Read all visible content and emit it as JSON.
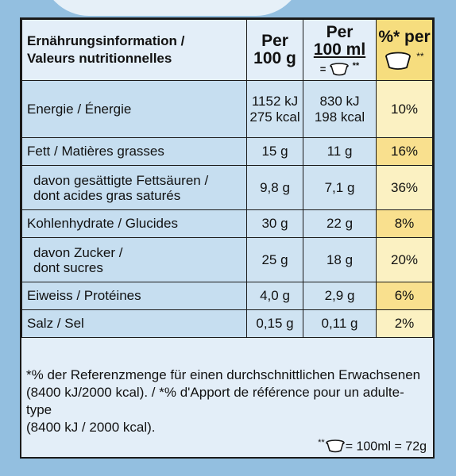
{
  "header": {
    "label_de": "Ernährungsinformation /",
    "label_fr": "Valeurs nutritionnelles",
    "per100g_a": "Per",
    "per100g_b": "100 g",
    "per100ml_a": "Per",
    "per100ml_b": "100 ml",
    "per100ml_eq": "=",
    "per100ml_mark": "**",
    "pct_a": "%* per",
    "pct_mark": "**"
  },
  "rows": [
    {
      "name1": "Energie / Énergie",
      "name2": "",
      "v100g_1": "1152 kJ",
      "v100g_2": "275 kcal",
      "v100ml_1": "830 kJ",
      "v100ml_2": "198 kcal",
      "pct": "10%"
    },
    {
      "name1": "Fett / Matières grasses",
      "name2": "",
      "v100g_1": "15 g",
      "v100g_2": "",
      "v100ml_1": "11 g",
      "v100ml_2": "",
      "pct": "16%"
    },
    {
      "name1": "davon gesättigte Fettsäuren /",
      "name2": "dont acides gras saturés",
      "v100g_1": "9,8 g",
      "v100g_2": "",
      "v100ml_1": "7,1 g",
      "v100ml_2": "",
      "pct": "36%"
    },
    {
      "name1": "Kohlenhydrate / Glucides",
      "name2": "",
      "v100g_1": "30 g",
      "v100g_2": "",
      "v100ml_1": "22 g",
      "v100ml_2": "",
      "pct": "8%"
    },
    {
      "name1": "davon Zucker /",
      "name2": "dont sucres",
      "v100g_1": "25 g",
      "v100g_2": "",
      "v100ml_1": "18 g",
      "v100ml_2": "",
      "pct": "20%"
    },
    {
      "name1": "Eiweiss / Protéines",
      "name2": "",
      "v100g_1": "4,0 g",
      "v100g_2": "",
      "v100ml_1": "2,9 g",
      "v100ml_2": "",
      "pct": "6%"
    },
    {
      "name1": "Salz / Sel",
      "name2": "",
      "v100g_1": "0,15 g",
      "v100g_2": "",
      "v100ml_1": "0,11 g",
      "v100ml_2": "",
      "pct": "2%"
    }
  ],
  "footnote": {
    "line1": "*% der Referenzmenge für einen durchschnittlichen Erwachsenen",
    "line2": "(8400 kJ/2000 kcal). / *% d'Apport de référence pour un adulte-type",
    "line3": "(8400 kJ / 2000 kcal).",
    "serving_mark": "**",
    "serving_text": "= 100ml = 72g"
  },
  "colors": {
    "background": "#93bfe0",
    "panel": "#e3eef8",
    "highlight": "#f9e08e",
    "light_highlight": "#fbf1c2"
  },
  "icons": [
    "container-icon"
  ]
}
